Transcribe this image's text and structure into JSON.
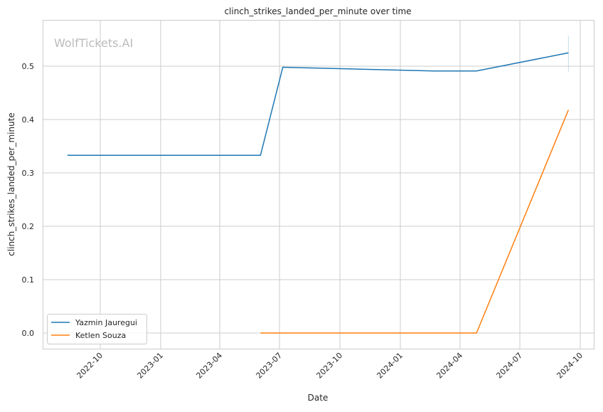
{
  "chart_data": {
    "type": "line",
    "title": "clinch_strikes_landed_per_minute over time",
    "xlabel": "Date",
    "ylabel": "clinch_strikes_landed_per_minute",
    "watermark": "WolfTickets.AI",
    "xlim": [
      "2022-07-24",
      "2024-10-20"
    ],
    "ylim": [
      -0.03,
      0.585
    ],
    "x_ticks": [
      "2022-10",
      "2023-01",
      "2023-04",
      "2023-07",
      "2023-10",
      "2024-01",
      "2024-04",
      "2024-07",
      "2024-10"
    ],
    "y_ticks": [
      "0.0",
      "0.1",
      "0.2",
      "0.3",
      "0.4",
      "0.5"
    ],
    "grid": true,
    "legend_position": "bottom-left",
    "series": [
      {
        "name": "Yazmin Jauregui",
        "color": "#1f77b4",
        "x": [
          "2022-08-12",
          "2023-06-02",
          "2023-07-06",
          "2024-02-21",
          "2024-04-26",
          "2024-09-13"
        ],
        "y": [
          0.333,
          0.333,
          0.498,
          0.491,
          0.491,
          0.525
        ],
        "band_last": [
          0.49,
          0.557
        ]
      },
      {
        "name": "Ketlen Souza",
        "color": "#ff7f0e",
        "x": [
          "2023-06-02",
          "2024-04-26",
          "2024-09-13"
        ],
        "y": [
          0.0,
          0.0,
          0.418
        ]
      }
    ]
  }
}
